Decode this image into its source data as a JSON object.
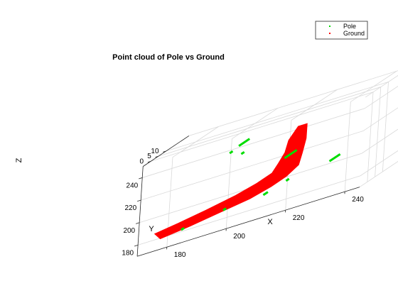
{
  "chart_data": {
    "type": "scatter",
    "title": "Point cloud of Pole vs Ground",
    "xlabel": "X",
    "ylabel": "Y",
    "zlabel": "Z",
    "xlim": [
      170,
      245
    ],
    "ylim": [
      170,
      250
    ],
    "zlim": [
      -5,
      25
    ],
    "xticks": [
      "180",
      "200",
      "220",
      "240"
    ],
    "yticks": [
      "180",
      "200",
      "220",
      "240"
    ],
    "zticks": [
      "0",
      "5",
      "10"
    ],
    "grid": true,
    "legend": {
      "placement": "top-right",
      "entries": [
        "Pole",
        "Ground"
      ]
    },
    "series": [
      {
        "name": "Pole",
        "color": "#00dd00",
        "marker": "point",
        "points": [
          {
            "x": 200,
            "y": 239,
            "z": 0
          },
          {
            "x": 200,
            "y": 239,
            "z": 7
          },
          {
            "x": 197,
            "y": 235,
            "z": 0
          },
          {
            "x": 197,
            "y": 235,
            "z": 2
          },
          {
            "x": 201,
            "y": 231,
            "z": 0
          },
          {
            "x": 201,
            "y": 231,
            "z": 2
          },
          {
            "x": 216,
            "y": 215,
            "z": 0
          },
          {
            "x": 216,
            "y": 215,
            "z": 8
          },
          {
            "x": 230,
            "y": 198,
            "z": 3
          },
          {
            "x": 230,
            "y": 198,
            "z": 10
          },
          {
            "x": 217,
            "y": 194,
            "z": 0
          },
          {
            "x": 217,
            "y": 194,
            "z": 2
          },
          {
            "x": 210,
            "y": 188,
            "z": -1
          },
          {
            "x": 210,
            "y": 188,
            "z": 2
          },
          {
            "x": 196,
            "y": 185,
            "z": 0
          },
          {
            "x": 196,
            "y": 185,
            "z": 2
          },
          {
            "x": 182,
            "y": 179,
            "z": 0
          },
          {
            "x": 182,
            "y": 179,
            "z": 2
          }
        ]
      },
      {
        "name": "Ground",
        "color": "#ff0000",
        "marker": "point",
        "outline": [
          {
            "x": 220,
            "y": 240,
            "z": 0
          },
          {
            "x": 217,
            "y": 230,
            "z": 0
          },
          {
            "x": 216,
            "y": 220,
            "z": 0
          },
          {
            "x": 214,
            "y": 212,
            "z": 0
          },
          {
            "x": 212,
            "y": 205,
            "z": 0
          },
          {
            "x": 207,
            "y": 200,
            "z": 0
          },
          {
            "x": 200,
            "y": 195,
            "z": 0
          },
          {
            "x": 190,
            "y": 190,
            "z": 0
          },
          {
            "x": 181,
            "y": 186,
            "z": 0
          },
          {
            "x": 173,
            "y": 183,
            "z": 0
          },
          {
            "x": 175,
            "y": 177,
            "z": 0
          },
          {
            "x": 185,
            "y": 180,
            "z": 0
          },
          {
            "x": 195,
            "y": 184,
            "z": 0
          },
          {
            "x": 205,
            "y": 188,
            "z": 0
          },
          {
            "x": 212,
            "y": 193,
            "z": 0
          },
          {
            "x": 217,
            "y": 198,
            "z": 0
          },
          {
            "x": 221,
            "y": 205,
            "z": 0
          },
          {
            "x": 222,
            "y": 215,
            "z": 0
          },
          {
            "x": 223,
            "y": 227,
            "z": 0
          },
          {
            "x": 223,
            "y": 240,
            "z": 0
          }
        ]
      }
    ]
  }
}
